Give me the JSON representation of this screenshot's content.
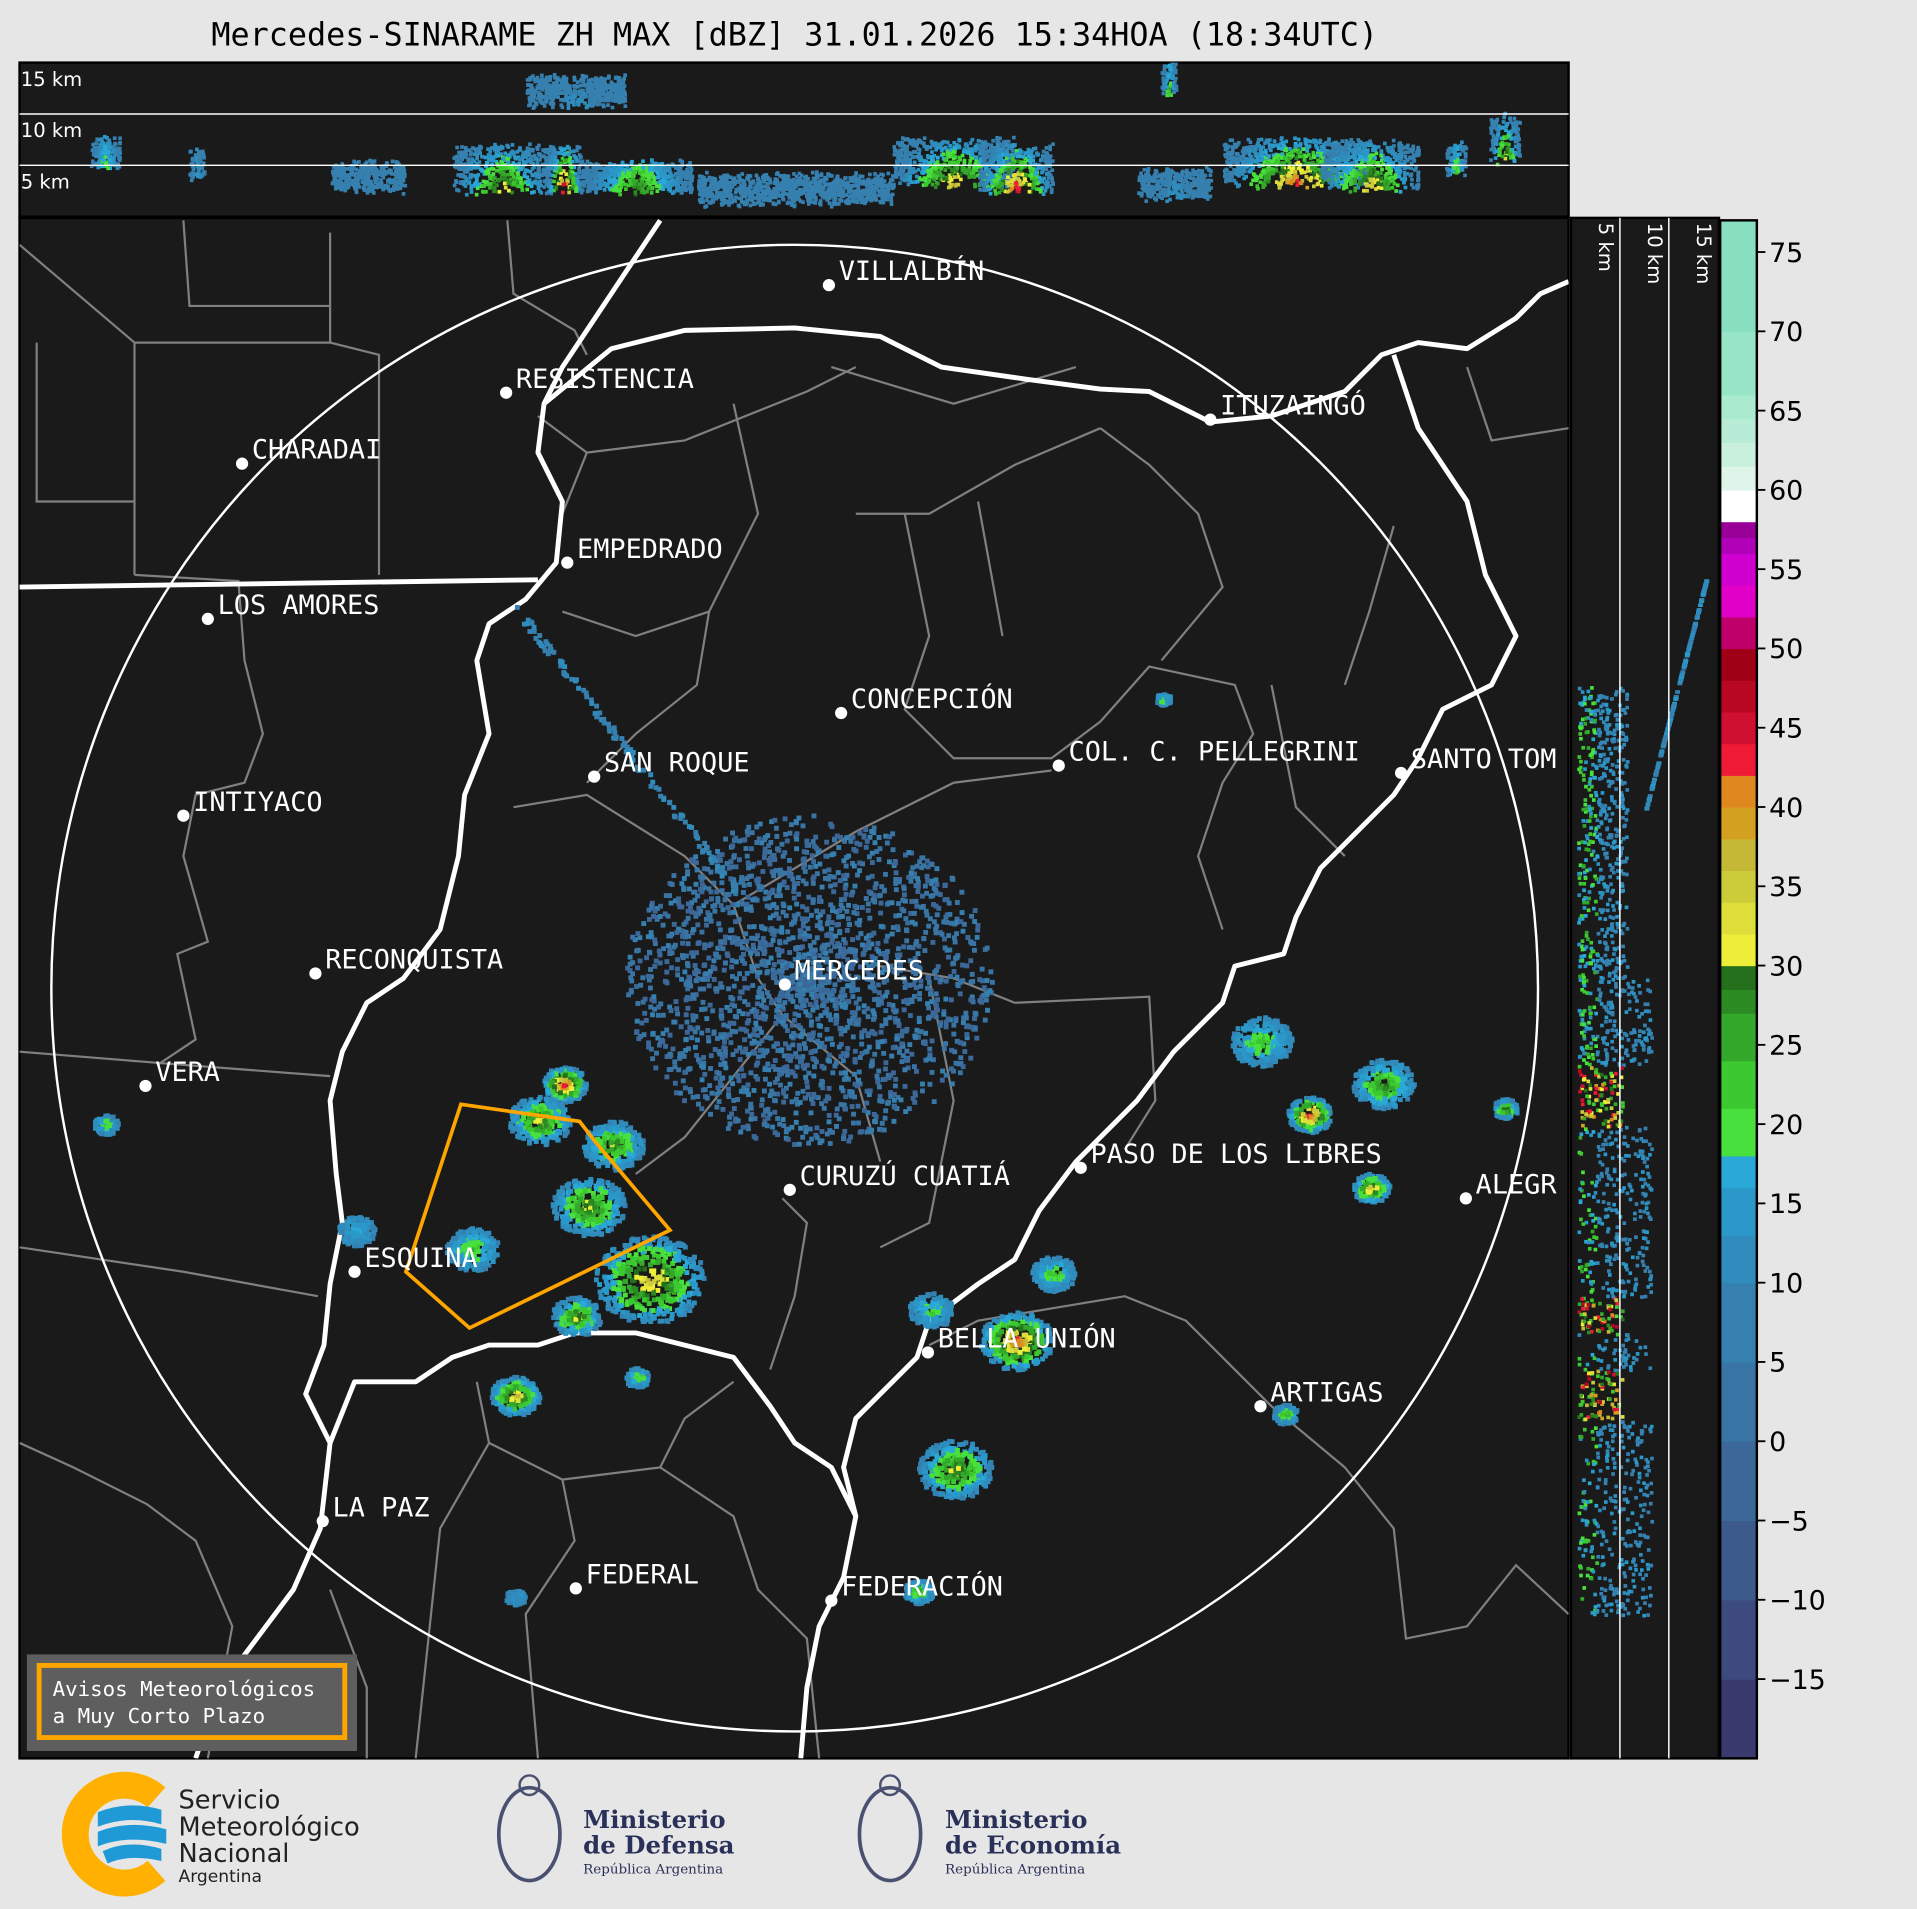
{
  "title": "Mercedes-SINARAME ZH MAX [dBZ] 31.01.2026 15:34HOA (18:34UTC)",
  "top_section": {
    "labels": [
      "15 km",
      "10 km",
      "5 km"
    ]
  },
  "side_section": {
    "labels": [
      "5 km",
      "10 km",
      "15 km"
    ]
  },
  "colorbar": {
    "variable": "ZH MAX [dBZ]",
    "range": [
      -20,
      77
    ],
    "ticks": [
      "75",
      "70",
      "65",
      "60",
      "55",
      "50",
      "45",
      "40",
      "35",
      "30",
      "25",
      "20",
      "15",
      "10",
      "5",
      "0",
      "−5",
      "−10",
      "−15"
    ],
    "bands": [
      {
        "from": -20,
        "color": "#3a3a6e"
      },
      {
        "from": -15,
        "color": "#3d4a7e"
      },
      {
        "from": -10,
        "color": "#3d5a8c"
      },
      {
        "from": -5,
        "color": "#3b6898"
      },
      {
        "from": 0,
        "color": "#3874a4"
      },
      {
        "from": 5,
        "color": "#3680b0"
      },
      {
        "from": 10,
        "color": "#2f8cbc"
      },
      {
        "from": 13,
        "color": "#2a98c8"
      },
      {
        "from": 16,
        "color": "#2aa8d8"
      },
      {
        "from": 18,
        "color": "#48e03c"
      },
      {
        "from": 21,
        "color": "#3cc830"
      },
      {
        "from": 24,
        "color": "#34a82a"
      },
      {
        "from": 27,
        "color": "#2c8a22"
      },
      {
        "from": 28.5,
        "color": "#24701c"
      },
      {
        "from": 30,
        "color": "#eeee3a"
      },
      {
        "from": 32,
        "color": "#dede3a"
      },
      {
        "from": 34,
        "color": "#cccc3a"
      },
      {
        "from": 36,
        "color": "#c4b836"
      },
      {
        "from": 38,
        "color": "#d4a020"
      },
      {
        "from": 40,
        "color": "#e08820"
      },
      {
        "from": 42,
        "color": "#ee1a36"
      },
      {
        "from": 44,
        "color": "#d01030"
      },
      {
        "from": 46,
        "color": "#b80822"
      },
      {
        "from": 48,
        "color": "#a00016"
      },
      {
        "from": 50,
        "color": "#c0006a"
      },
      {
        "from": 52,
        "color": "#e000c8"
      },
      {
        "from": 54,
        "color": "#d000d0"
      },
      {
        "from": 56,
        "color": "#b000b8"
      },
      {
        "from": 57,
        "color": "#980098"
      },
      {
        "from": 58,
        "color": "#ffffff"
      },
      {
        "from": 60,
        "color": "#dff5ea"
      },
      {
        "from": 61.5,
        "color": "#c8f0dc"
      },
      {
        "from": 63,
        "color": "#b8ecd6"
      },
      {
        "from": 64.5,
        "color": "#aaeace"
      },
      {
        "from": 66,
        "color": "#98e4c6"
      },
      {
        "from": 70,
        "color": "#88dfc0"
      }
    ]
  },
  "cities": [
    {
      "name": "VILLALBÍN"
    },
    {
      "name": "RESISTENCIA"
    },
    {
      "name": "CHARADAI"
    },
    {
      "name": "EMPEDRADO"
    },
    {
      "name": "LOS AMORES"
    },
    {
      "name": "CONCEPCIÓN"
    },
    {
      "name": "SAN ROQUE"
    },
    {
      "name": "COL. C. PELLEGRINI"
    },
    {
      "name": "SANTO TOM"
    },
    {
      "name": "ITUZAINGÓ"
    },
    {
      "name": "INTIYACO"
    },
    {
      "name": "RECONQUISTA"
    },
    {
      "name": "MERCEDES"
    },
    {
      "name": "VERA"
    },
    {
      "name": "CURUZÚ CUATIÁ"
    },
    {
      "name": "PASO DE LOS LIBRES"
    },
    {
      "name": "ALEGR"
    },
    {
      "name": "ESQUINA"
    },
    {
      "name": "BELLA UNIÓN"
    },
    {
      "name": "ARTIGAS"
    },
    {
      "name": "LA PAZ"
    },
    {
      "name": "FEDERAL"
    },
    {
      "name": "FEDERACIÓN"
    }
  ],
  "warning_box": {
    "line1": "Avisos Meteorológicos",
    "line2": "a Muy Corto Plazo",
    "border_color": "#ffa500"
  },
  "logos": {
    "smn": {
      "line1": "Servicio",
      "line2": "Meteorológico",
      "line3": "Nacional",
      "line4": "Argentina"
    },
    "defensa": {
      "line1": "Ministerio",
      "line2": "de Defensa",
      "line3": "República Argentina"
    },
    "economia": {
      "line1": "Ministerio",
      "line2": "de Economía",
      "line3": "República Argentina"
    }
  }
}
